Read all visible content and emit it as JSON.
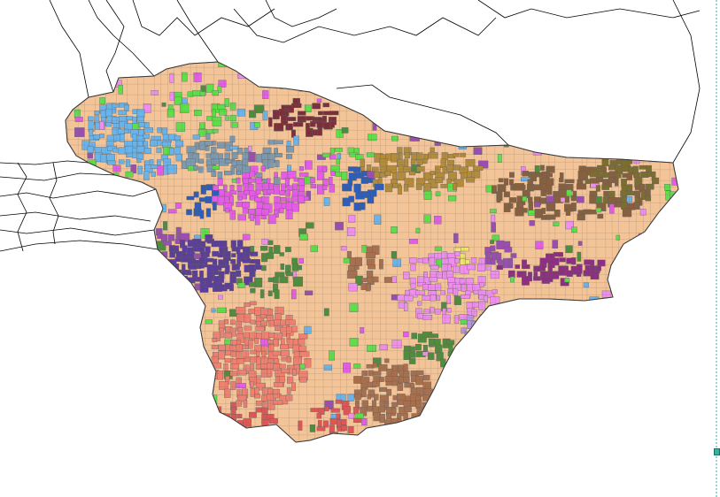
{
  "map": {
    "background": "#ffffff",
    "boundary_color": "#000000",
    "tract_outline_color": "#6b6b6b",
    "base_fill": "#f2c498",
    "palette": {
      "light_blue": "#6ab4ec",
      "steel_blue": "#7d9ab0",
      "bright_blue": "#2d5db8",
      "indigo": "#5a3e99",
      "magenta": "#e65ce8",
      "pink": "#f08ef0",
      "violet": "#9a4fb0",
      "plum": "#8e2e83",
      "maroon": "#7c2f3b",
      "green": "#5fde4b",
      "dark_green": "#4f8d3e",
      "olive": "#7c6e2f",
      "gold": "#b28c3a",
      "brown": "#86603f",
      "copper": "#a9704e",
      "salmon": "#f08070",
      "red": "#e05656",
      "yellow": "#efe46c",
      "lavender": "#b892e6"
    }
  },
  "ui": {
    "divider_color": "#2fb3a6",
    "handle_color": "#2fb3a6"
  }
}
